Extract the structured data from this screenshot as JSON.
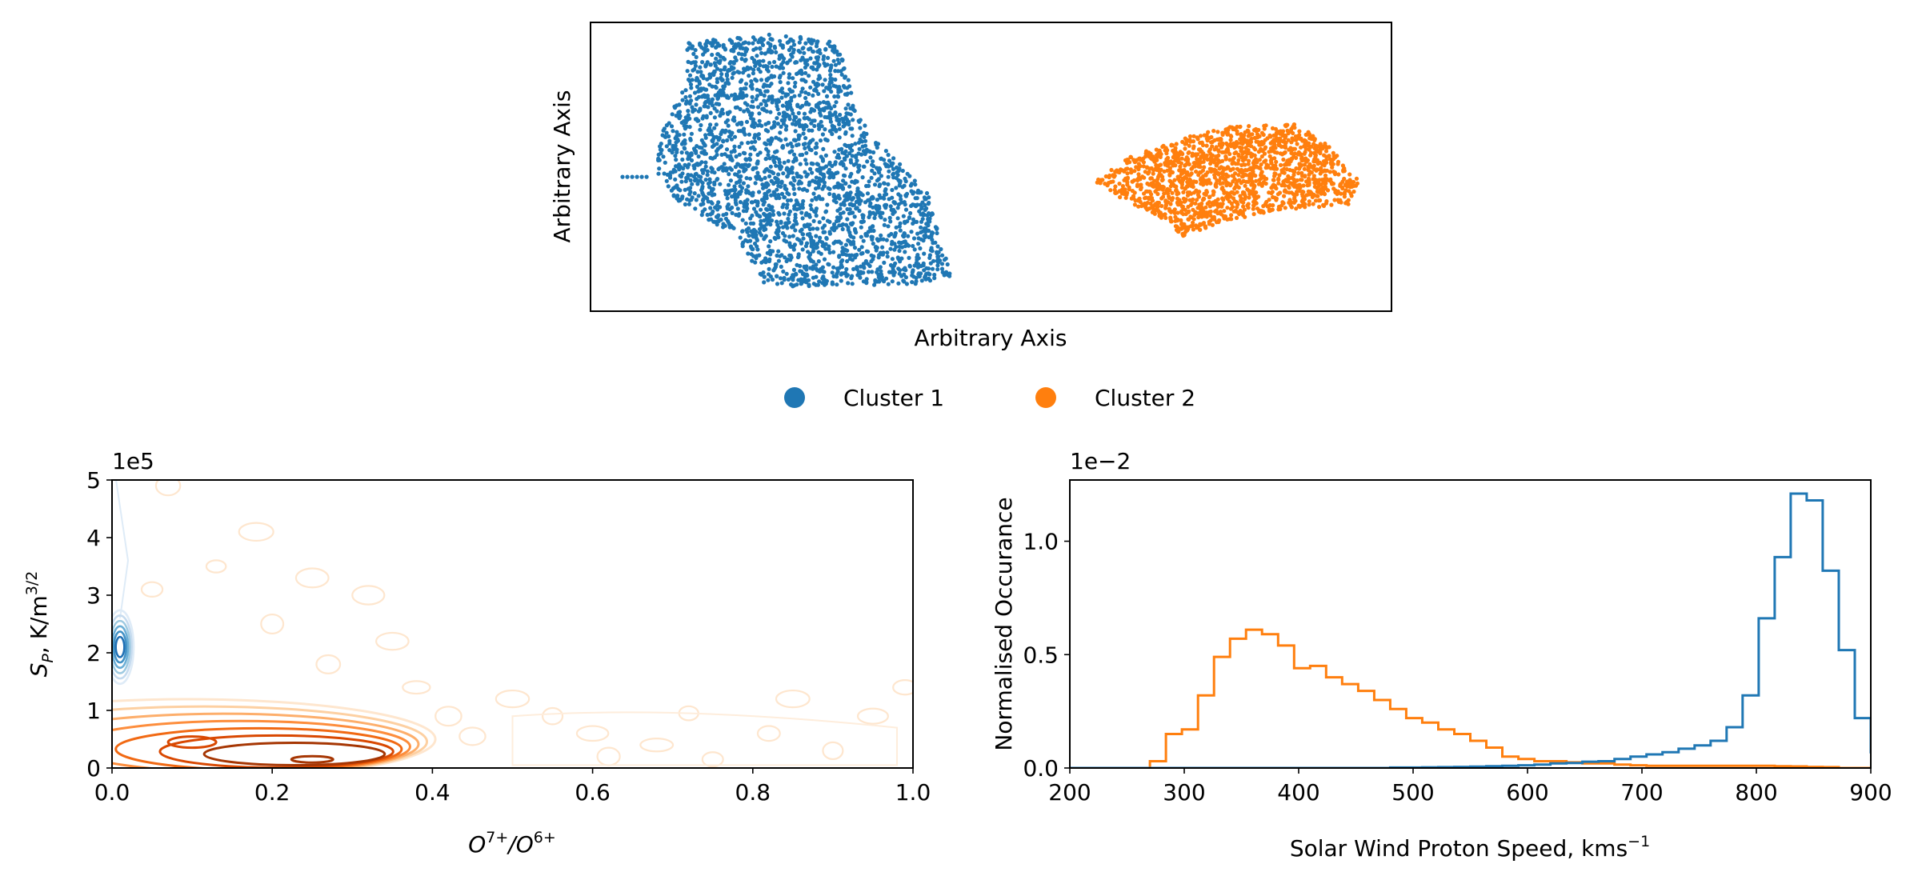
{
  "colors": {
    "cluster1": "#1f77b4",
    "cluster2": "#ff7f0e"
  },
  "chart_data": [
    {
      "id": "umap",
      "type": "scatter",
      "title": "",
      "xlabel": "Arbitrary Axis",
      "ylabel": "Arbitrary Axis",
      "xticks": false,
      "yticks": false,
      "xlim": [
        0,
        100
      ],
      "ylim": [
        0,
        100
      ],
      "series": [
        {
          "name": "Cluster 1",
          "color": "#1f77b4",
          "region": {
            "xrange": [
              4,
              45
            ],
            "yrange": [
              8,
              96
            ]
          }
        },
        {
          "name": "Cluster 2",
          "color": "#ff7f0e",
          "region": {
            "xrange": [
              63,
              96
            ],
            "yrange": [
              26,
              65
            ]
          }
        }
      ]
    },
    {
      "id": "contour",
      "type": "contour",
      "title": "",
      "xlabel": "O7+/O6+",
      "ylabel": "S_P, K/m^3/2",
      "y_offset_label": "1e5",
      "xlim": [
        0,
        1.0
      ],
      "ylim": [
        0,
        5
      ],
      "xticks": [
        0,
        0.2,
        0.4,
        0.6,
        0.8,
        1.0
      ],
      "xtick_labels": [
        "0.0",
        "0.2",
        "0.4",
        "0.6",
        "0.8",
        "1.0"
      ],
      "yticks": [
        0,
        1,
        2,
        3,
        4,
        5
      ],
      "ytick_labels": [
        "0",
        "1",
        "2",
        "3",
        "4",
        "5"
      ],
      "series": [
        {
          "name": "Cluster 1",
          "color": "#1f77b4",
          "peak": [
            0.01,
            2.1
          ]
        },
        {
          "name": "Cluster 2",
          "color": "#ff7f0e",
          "peak": [
            0.25,
            0.15
          ]
        }
      ]
    },
    {
      "id": "hist",
      "type": "histogram",
      "title": "",
      "xlabel": "Solar Wind Proton Speed, kms",
      "xlabel_sup": "−1",
      "ylabel": "Normalised Occurance",
      "y_offset_label": "1e−2",
      "xlim": [
        200,
        900
      ],
      "ylim": [
        0,
        1.27
      ],
      "xticks": [
        200,
        300,
        400,
        500,
        600,
        700,
        800,
        900
      ],
      "xtick_labels": [
        "200",
        "300",
        "400",
        "500",
        "600",
        "700",
        "800",
        "900"
      ],
      "yticks": [
        0,
        0.5,
        1.0
      ],
      "ytick_labels": [
        "0.0",
        "0.5",
        "1.0"
      ],
      "bin_start": 200,
      "bin_width": 14,
      "series": [
        {
          "name": "Cluster 1",
          "color": "#1f77b4",
          "values": [
            0,
            0,
            0,
            0,
            0,
            0,
            0,
            0,
            0,
            0,
            0,
            0,
            0,
            0,
            0,
            0,
            0,
            0,
            0,
            0,
            0.002,
            0.002,
            0.003,
            0.004,
            0.005,
            0.006,
            0.008,
            0.01,
            0.012,
            0.015,
            0.02,
            0.022,
            0.028,
            0.03,
            0.04,
            0.05,
            0.06,
            0.07,
            0.085,
            0.1,
            0.12,
            0.18,
            0.32,
            0.66,
            0.93,
            1.21,
            1.18,
            0.87,
            0.52,
            0.22,
            0.07,
            0.015,
            0,
            0,
            0,
            0,
            0,
            0,
            0,
            0
          ]
        },
        {
          "name": "Cluster 2",
          "color": "#ff7f0e",
          "values": [
            0,
            0,
            0,
            0,
            0,
            0.03,
            0.15,
            0.17,
            0.32,
            0.49,
            0.57,
            0.61,
            0.59,
            0.54,
            0.44,
            0.45,
            0.4,
            0.37,
            0.34,
            0.3,
            0.26,
            0.22,
            0.2,
            0.17,
            0.15,
            0.12,
            0.09,
            0.05,
            0.04,
            0.03,
            0.03,
            0.025,
            0.02,
            0.02,
            0.015,
            0.012,
            0.01,
            0.01,
            0.01,
            0.01,
            0.01,
            0.01,
            0.01,
            0.01,
            0.008,
            0.007,
            0.005,
            0.004,
            0,
            0,
            0,
            0,
            0,
            0,
            0,
            0,
            0,
            0,
            0,
            0
          ]
        }
      ]
    }
  ],
  "legend": [
    {
      "label": "Cluster 1",
      "color": "#1f77b4"
    },
    {
      "label": "Cluster 2",
      "color": "#ff7f0e"
    }
  ]
}
